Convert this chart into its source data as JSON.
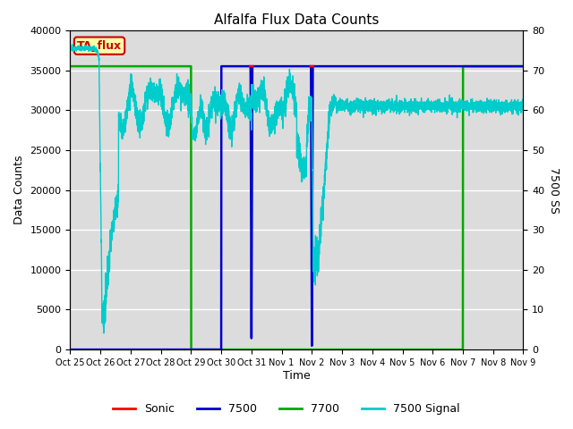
{
  "title": "Alfalfa Flux Data Counts",
  "ylabel_left": "Data Counts",
  "ylabel_right": "7500 SS",
  "xlabel": "Time",
  "ylim_left": [
    0,
    40000
  ],
  "ylim_right": [
    0,
    80
  ],
  "yticks_left": [
    0,
    5000,
    10000,
    15000,
    20000,
    25000,
    30000,
    35000,
    40000
  ],
  "yticks_right": [
    0,
    10,
    20,
    30,
    40,
    50,
    60,
    70,
    80
  ],
  "bg_color": "#DCDCDC",
  "fig_color": "#FFFFFF",
  "annotation_text": "TA_flux",
  "annotation_bg": "#FFFFAA",
  "annotation_border": "#CC0000",
  "xtick_labels": [
    "Oct 25",
    "Oct 26",
    "Oct 27",
    "Oct 28",
    "Oct 29",
    "Oct 30",
    "Oct 31",
    "Nov 1",
    "Nov 2",
    "Nov 3",
    "Nov 4",
    "Nov 5",
    "Nov 6",
    "Nov 7",
    "Nov 8",
    "Nov 9"
  ],
  "legend_labels": [
    "Sonic",
    "7500",
    "7700",
    "7500 Signal"
  ],
  "legend_colors": [
    "#FF0000",
    "#0000CC",
    "#00AA00",
    "#00CCCC"
  ],
  "color_7700": "#00AA00",
  "color_7500": "#0000CC",
  "color_sonic": "#FF0000",
  "color_signal": "#00CCCC",
  "step_value": 35500,
  "n_days": 15
}
